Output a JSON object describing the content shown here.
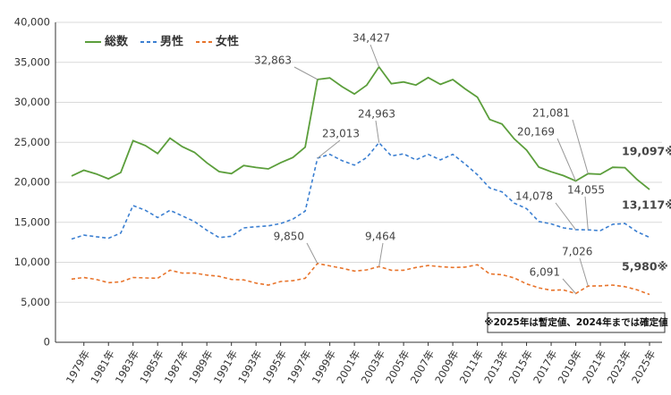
{
  "chart_data": {
    "type": "line",
    "note": "※2025年は暫定値、2024年までは確定値",
    "categories": [
      null,
      "1979年",
      null,
      "1981年",
      null,
      "1983年",
      null,
      "1985年",
      null,
      "1987年",
      null,
      "1989年",
      null,
      "1991年",
      null,
      "1993年",
      null,
      "1995年",
      null,
      "1997年",
      null,
      "1999年",
      null,
      "2001年",
      null,
      "2003年",
      null,
      "2005年",
      null,
      "2007年",
      null,
      "2009年",
      null,
      "2011年",
      null,
      "2013年",
      null,
      "2015年",
      null,
      "2017年",
      null,
      "2019年",
      null,
      "2021年",
      null,
      "2023年",
      null,
      "2025年"
    ],
    "series": [
      {
        "name": "総数",
        "color": "#5b9e3b",
        "dash": false,
        "values": [
          20788,
          21503,
          21048,
          20434,
          21228,
          25202,
          24596,
          23599,
          25524,
          24460,
          23742,
          22436,
          21346,
          21084,
          22104,
          21851,
          21679,
          22445,
          23104,
          24391,
          32863,
          33048,
          31957,
          31042,
          32143,
          34427,
          32325,
          32552,
          32155,
          33093,
          32249,
          32845,
          31690,
          30651,
          27858,
          27283,
          25427,
          24025,
          21897,
          21321,
          20840,
          20169,
          21081,
          21007,
          21881,
          21837,
          20320,
          19097
        ],
        "value_labels": [
          null,
          null,
          null,
          null,
          null,
          null,
          null,
          null,
          null,
          null,
          null,
          null,
          null,
          null,
          null,
          null,
          null,
          null,
          null,
          null,
          "32,863",
          null,
          null,
          null,
          null,
          "34,427",
          null,
          null,
          null,
          null,
          null,
          null,
          null,
          null,
          null,
          null,
          null,
          null,
          null,
          null,
          null,
          "20,169",
          "21,081",
          null,
          null,
          null,
          null,
          "19,097※"
        ]
      },
      {
        "name": "男性",
        "color": "#3b7fd1",
        "dash": true,
        "values": [
          12900,
          13400,
          13200,
          13000,
          13650,
          17100,
          16500,
          15600,
          16500,
          15800,
          15100,
          14000,
          13100,
          13250,
          14300,
          14450,
          14550,
          14850,
          15400,
          16400,
          23013,
          23500,
          22700,
          22150,
          23100,
          24963,
          23300,
          23550,
          22800,
          23500,
          22800,
          23500,
          22300,
          20950,
          19300,
          18800,
          17400,
          16700,
          15100,
          14800,
          14300,
          14078,
          14055,
          13950,
          14750,
          14850,
          13800,
          13117
        ],
        "value_labels": [
          null,
          null,
          null,
          null,
          null,
          null,
          null,
          null,
          null,
          null,
          null,
          null,
          null,
          null,
          null,
          null,
          null,
          null,
          null,
          null,
          "23,013",
          null,
          null,
          null,
          null,
          "24,963",
          null,
          null,
          null,
          null,
          null,
          null,
          null,
          null,
          null,
          null,
          null,
          null,
          null,
          null,
          null,
          "14,078",
          "14,055",
          null,
          null,
          null,
          null,
          "13,117※"
        ]
      },
      {
        "name": "女性",
        "color": "#e8742b",
        "dash": true,
        "values": [
          7900,
          8100,
          7850,
          7450,
          7550,
          8100,
          8050,
          8000,
          9000,
          8650,
          8650,
          8400,
          8250,
          7850,
          7800,
          7400,
          7150,
          7600,
          7700,
          8000,
          9850,
          9550,
          9250,
          8900,
          9050,
          9464,
          9000,
          9000,
          9350,
          9600,
          9450,
          9350,
          9400,
          9700,
          8550,
          8450,
          8050,
          7300,
          6800,
          6500,
          6550,
          6091,
          7026,
          7050,
          7150,
          6950,
          6550,
          5980
        ],
        "value_labels": [
          null,
          null,
          null,
          null,
          null,
          null,
          null,
          null,
          null,
          null,
          null,
          null,
          null,
          null,
          null,
          null,
          null,
          null,
          null,
          null,
          "9,850",
          null,
          null,
          null,
          null,
          "9,464",
          null,
          null,
          null,
          null,
          null,
          null,
          null,
          null,
          null,
          null,
          null,
          null,
          null,
          null,
          null,
          "6,091",
          "7,026",
          null,
          null,
          null,
          null,
          "5,980※"
        ]
      }
    ],
    "ylim": [
      0,
      40000
    ],
    "yticks": [
      0,
      {
        "value": 5000,
        "label": "5,000"
      },
      {
        "value": 10000,
        "label": "10,000"
      },
      {
        "value": 15000,
        "label": "15,000"
      },
      {
        "value": 20000,
        "label": "20,000"
      },
      {
        "value": 25000,
        "label": "25,000"
      },
      {
        "value": 30000,
        "label": "30,000"
      },
      {
        "value": 35000,
        "label": "35,000"
      },
      {
        "value": 40000,
        "label": "40,000"
      }
    ],
    "grid": true,
    "legend": "top-left"
  }
}
